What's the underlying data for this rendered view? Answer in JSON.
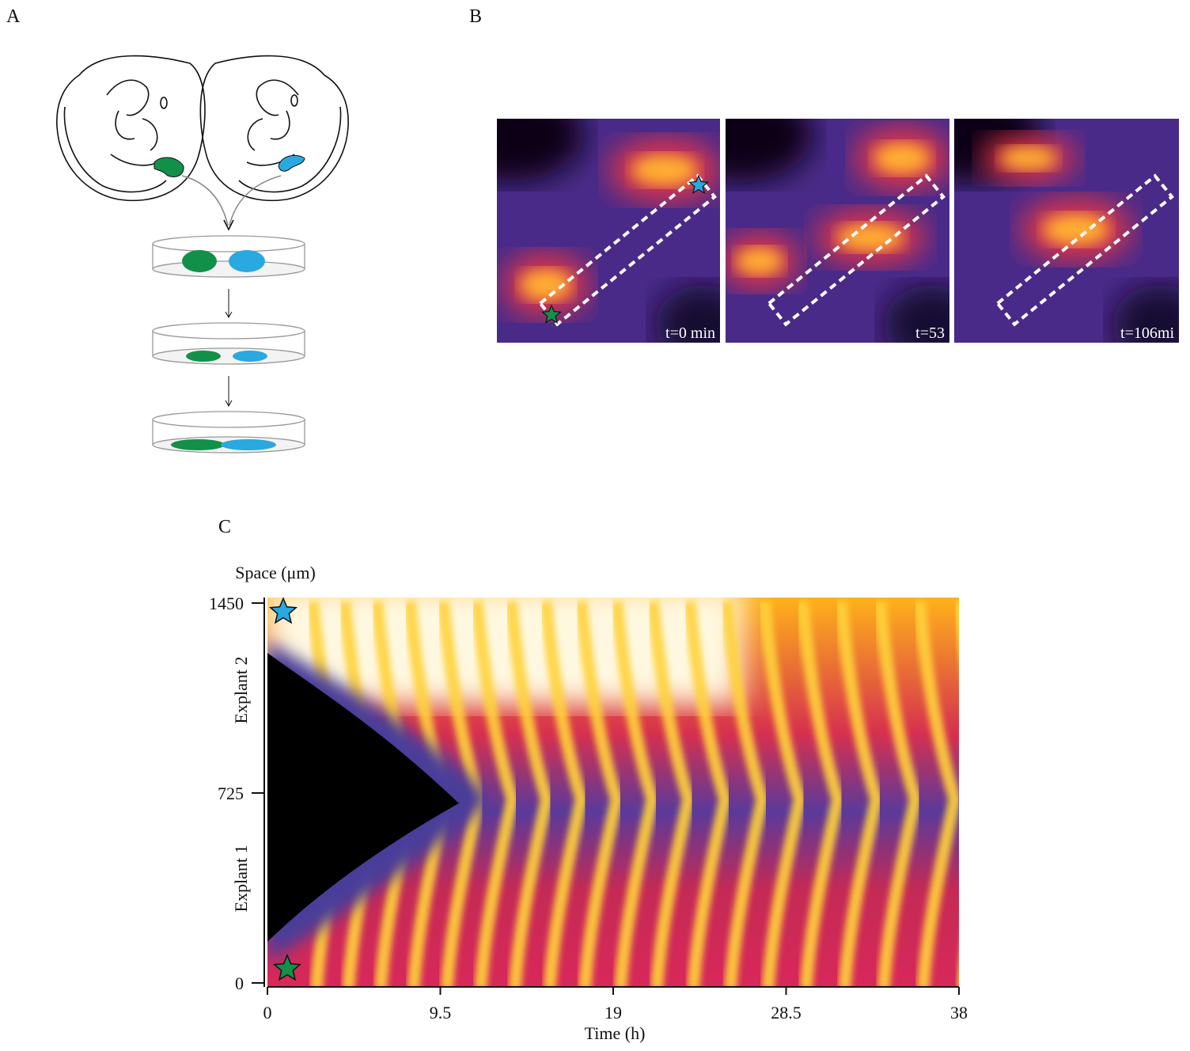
{
  "panels": {
    "a": {
      "label": "A"
    },
    "b": {
      "label": "B",
      "frames": [
        "t=0 min",
        "t=53",
        "t=106mi"
      ]
    },
    "c": {
      "label": "C",
      "y_label": "Space (μm)",
      "x_label": "Time (h)",
      "xlim": [
        0,
        38
      ],
      "ylim": [
        0,
        1450
      ],
      "xticks": [
        0,
        9.5,
        19,
        28.5,
        38
      ],
      "yticks": [
        0,
        725,
        1450
      ],
      "regions": [
        "Explant 1",
        "Explant 2"
      ]
    }
  }
}
